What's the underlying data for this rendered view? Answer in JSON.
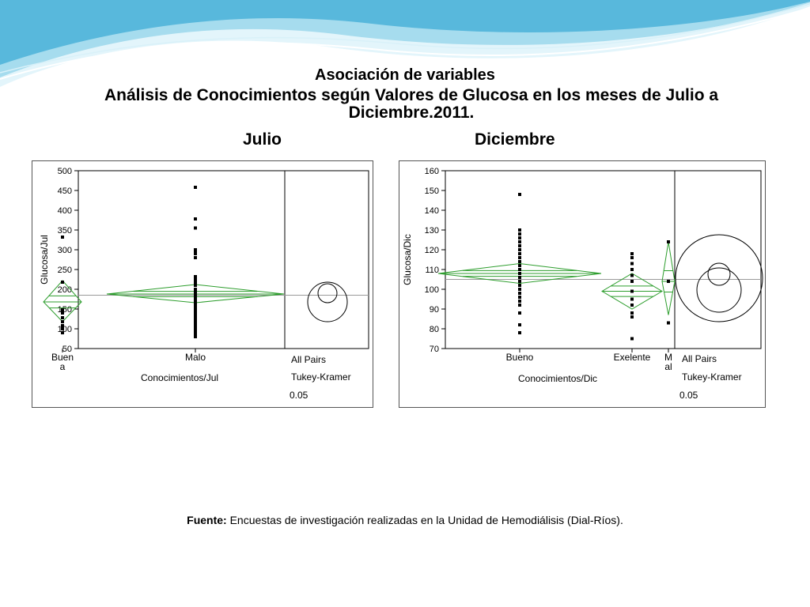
{
  "slide": {
    "title": "Asociación de variables",
    "subtitle": "Análisis de Conocimientos según Valores de Glucosa en los meses de Julio a Diciembre.2011.",
    "label_left": "Julio",
    "label_right": "Diciembre",
    "source_label": "Fuente:",
    "source_text": "Encuestas de investigación realizadas en la Unidad de Hemodiálisis (Dial-Ríos).",
    "colors": {
      "diamond": "#2e9e2e",
      "points": "#000000",
      "grand_mean": "#999999",
      "wave_light": "#bfe8f4",
      "wave_dark": "#4fb3d9"
    }
  },
  "chart_data": [
    {
      "type": "scatter",
      "subtype": "oneway-means-diamonds",
      "xlabel": "Conocimientos/Jul",
      "ylabel": "Glucosa/Jul",
      "ylim": [
        50,
        500
      ],
      "yticks": [
        50,
        100,
        150,
        200,
        250,
        300,
        350,
        400,
        450,
        500
      ],
      "grand_mean": 185,
      "categories": [
        "Buena",
        "Malo"
      ],
      "category_labels": [
        "Buen\na",
        "Malo"
      ],
      "groups": [
        {
          "name": "Buena",
          "mean": 168,
          "ci": [
            118,
            222
          ],
          "points": [
            90,
            100,
            108,
            118,
            128,
            140,
            148,
            218,
            332
          ]
        },
        {
          "name": "Malo",
          "mean": 188,
          "ci": [
            166,
            212
          ],
          "points": [
            80,
            85,
            90,
            95,
            100,
            105,
            110,
            115,
            120,
            125,
            130,
            135,
            140,
            145,
            150,
            155,
            160,
            165,
            170,
            175,
            180,
            185,
            190,
            195,
            200,
            210,
            218,
            225,
            232,
            280,
            290,
            295,
            300,
            355,
            378,
            458
          ]
        }
      ],
      "comparison": {
        "title": "All Pairs",
        "method": "Tukey-Kramer",
        "alpha": "0.05"
      }
    },
    {
      "type": "scatter",
      "subtype": "oneway-means-diamonds",
      "xlabel": "Conocimientos/Dic",
      "ylabel": "Glucosa/Dic",
      "ylim": [
        70,
        160
      ],
      "yticks": [
        70,
        80,
        90,
        100,
        110,
        120,
        130,
        140,
        150,
        160
      ],
      "grand_mean": 105,
      "categories": [
        "Bueno",
        "Exelente",
        "Mal"
      ],
      "category_labels": [
        "Bueno",
        "Exelente",
        "M\nal"
      ],
      "groups": [
        {
          "name": "Bueno",
          "mean": 108,
          "ci": [
            103,
            113
          ],
          "points": [
            78,
            82,
            88,
            92,
            94,
            96,
            98,
            100,
            102,
            104,
            106,
            108,
            110,
            112,
            114,
            116,
            118,
            120,
            122,
            124,
            126,
            128,
            130,
            148
          ]
        },
        {
          "name": "Exelente",
          "mean": 99,
          "ci": [
            90,
            108
          ],
          "points": [
            75,
            86,
            88,
            92,
            95,
            99,
            104,
            107,
            110,
            113,
            116,
            118
          ]
        },
        {
          "name": "Mal",
          "mean": 104,
          "ci": [
            87,
            124
          ],
          "points": [
            83,
            104,
            124
          ]
        }
      ],
      "comparison": {
        "title": "All Pairs",
        "method": "Tukey-Kramer",
        "alpha": "0.05"
      }
    }
  ]
}
